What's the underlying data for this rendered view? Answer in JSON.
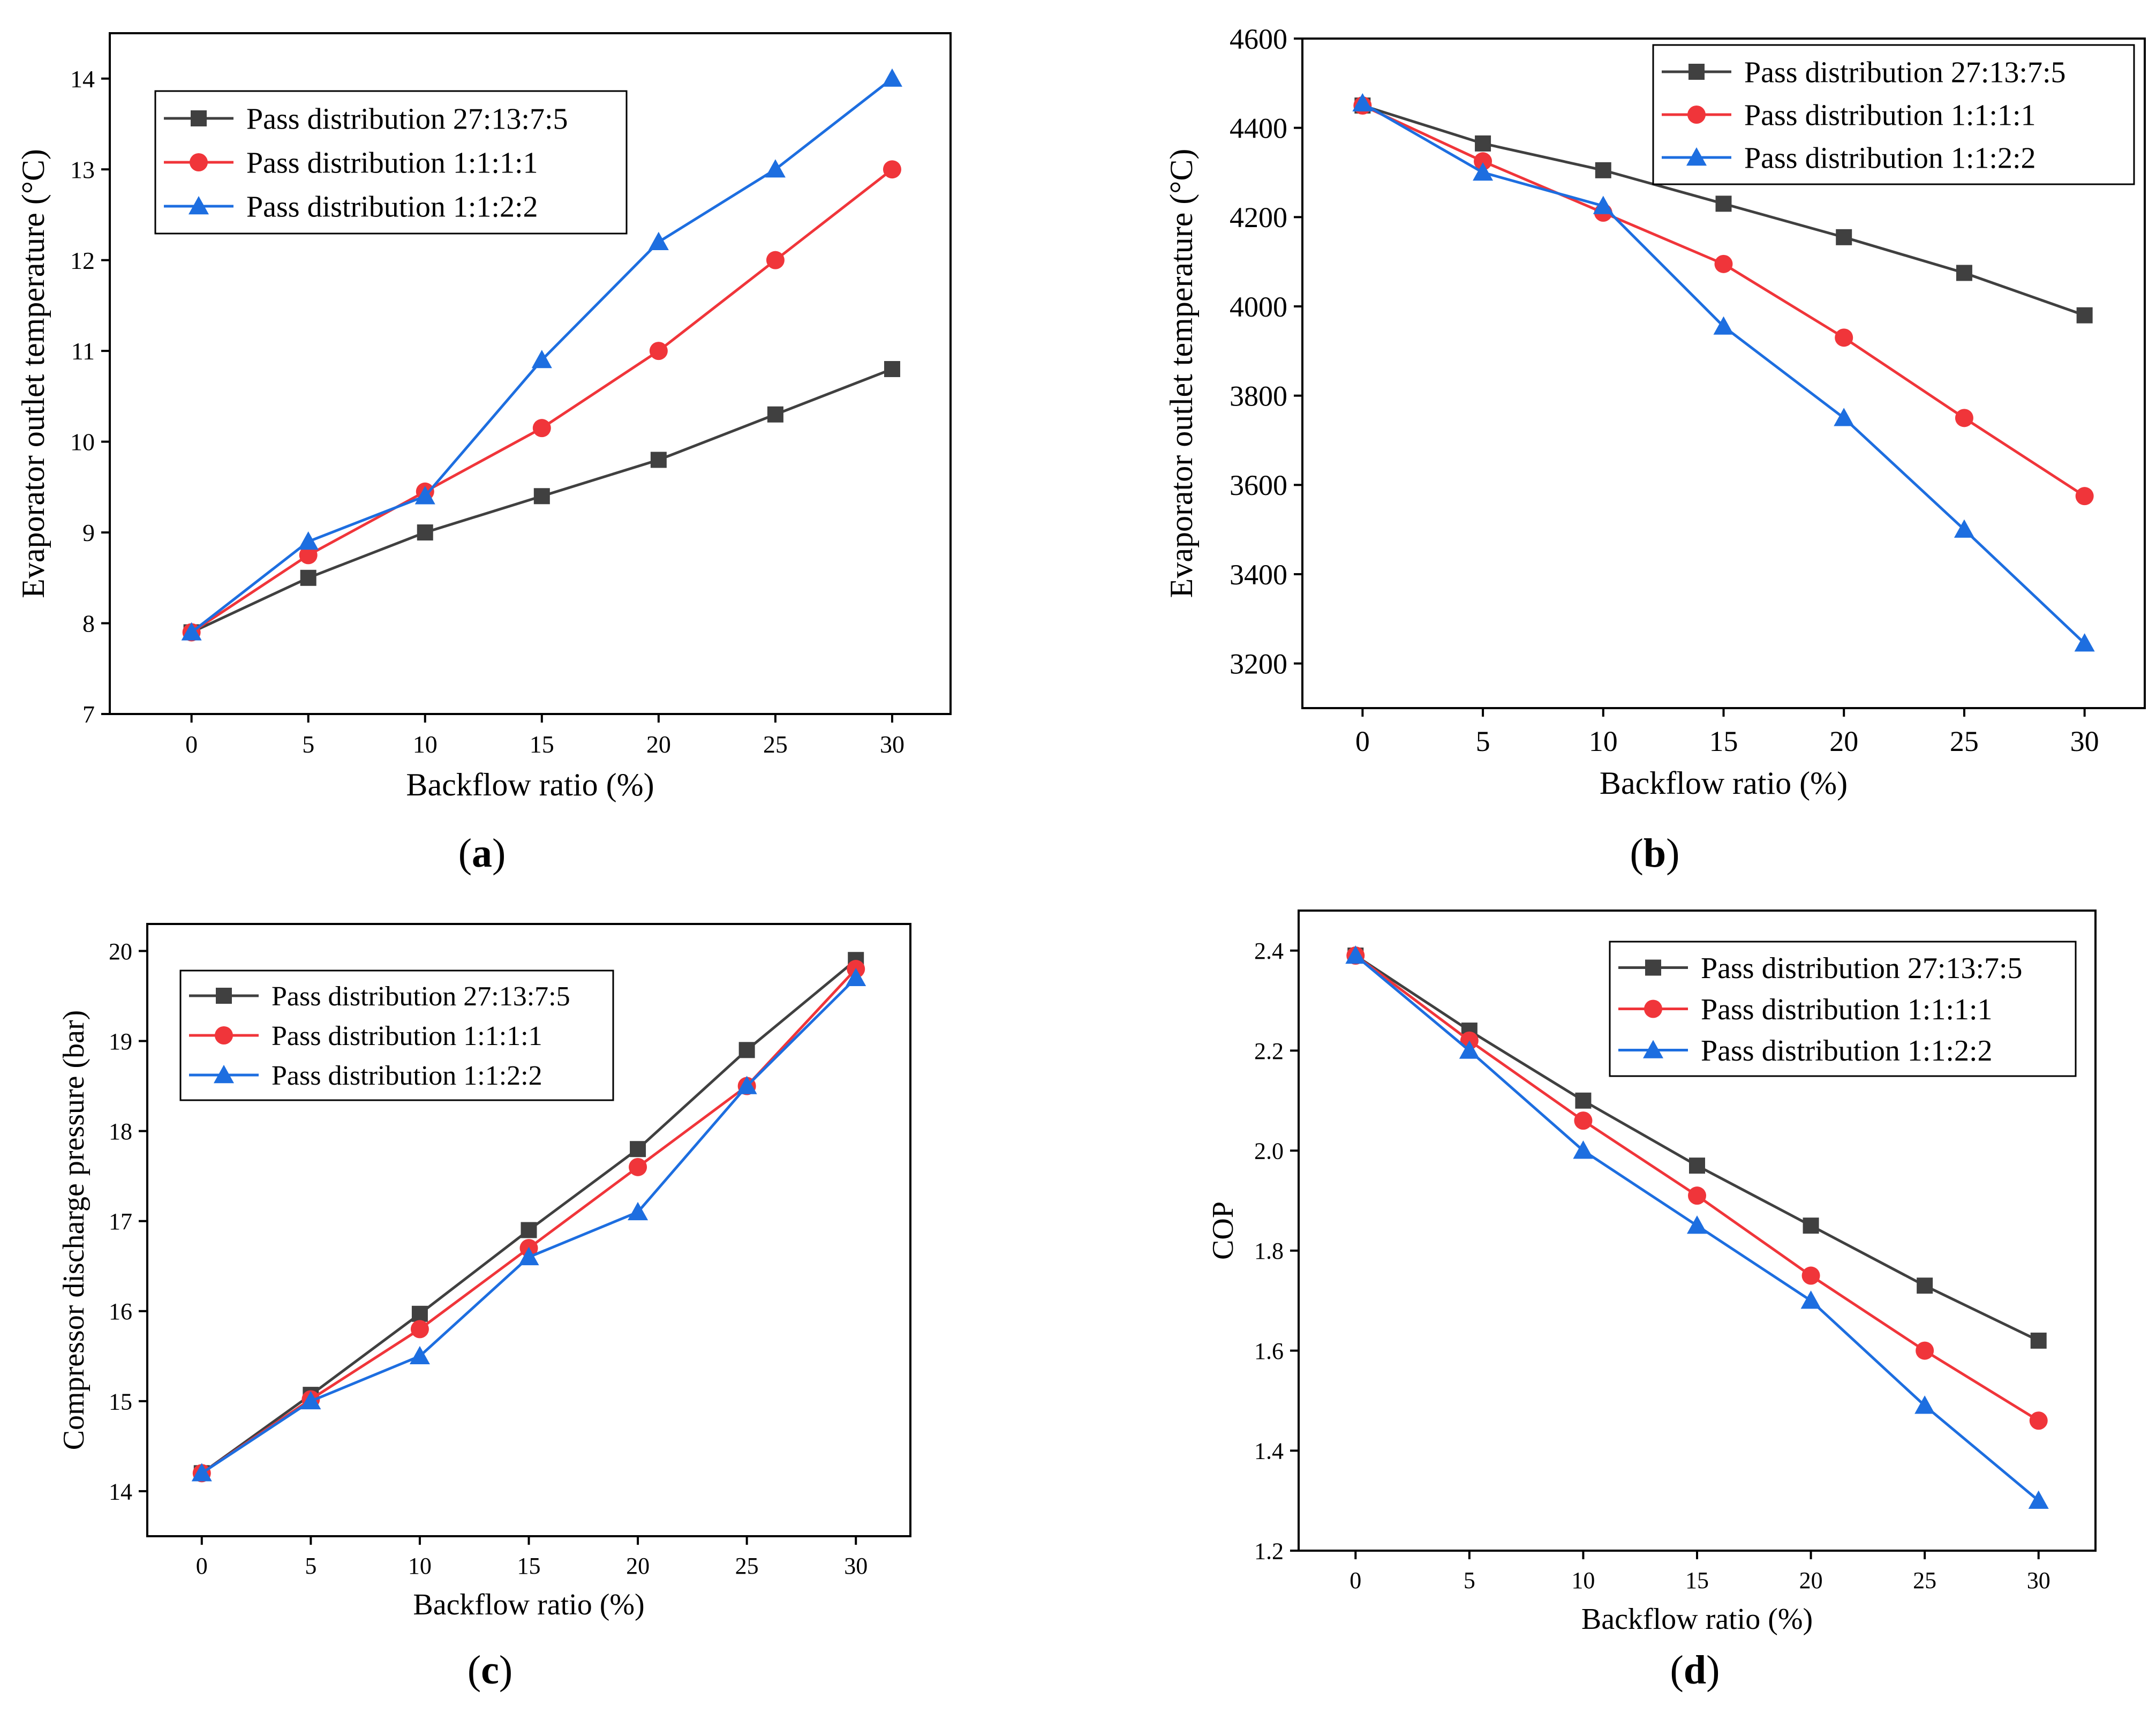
{
  "colors": {
    "series": [
      "#404040",
      "#f0353a",
      "#1d6ee0"
    ],
    "axis": "#000000",
    "background": "#ffffff"
  },
  "markers": [
    "square",
    "circle",
    "triangle"
  ],
  "chart_data": [
    {
      "type": "line",
      "caption": "a",
      "xlabel": "Backflow ratio (%)",
      "ylabel": "Evaporator outlet temperature (°C)",
      "title": "",
      "x": [
        0,
        5,
        10,
        15,
        20,
        25,
        30
      ],
      "xlim": [
        -3.5,
        32.5
      ],
      "ylim": [
        7,
        14.5
      ],
      "yticks": [
        7,
        8,
        9,
        10,
        11,
        12,
        13,
        14
      ],
      "grid": false,
      "legend_position": "top-left",
      "series": [
        {
          "name": "Pass distribution 27:13:7:5",
          "values": [
            7.9,
            8.5,
            9.0,
            9.4,
            9.8,
            10.3,
            10.8
          ]
        },
        {
          "name": "Pass distribution 1:1:1:1",
          "values": [
            7.9,
            8.75,
            9.45,
            10.15,
            11.0,
            12.0,
            13.0
          ]
        },
        {
          "name": "Pass distribution 1:1:2:2",
          "values": [
            7.9,
            8.9,
            9.4,
            10.9,
            12.2,
            13.0,
            14.0
          ]
        }
      ]
    },
    {
      "type": "line",
      "caption": "b",
      "xlabel": "Backflow ratio (%)",
      "ylabel": "Evaporator outlet temperature (°C)",
      "title": "",
      "x": [
        0,
        5,
        10,
        15,
        20,
        25,
        30
      ],
      "xlim": [
        -2.5,
        32.5
      ],
      "ylim": [
        3100,
        4600
      ],
      "yticks": [
        3200,
        3400,
        3600,
        3800,
        4000,
        4200,
        4400,
        4600
      ],
      "grid": false,
      "legend_position": "top-right",
      "series": [
        {
          "name": "Pass distribution 27:13:7:5",
          "values": [
            4450,
            4365,
            4305,
            4230,
            4155,
            4075,
            3980
          ]
        },
        {
          "name": "Pass distribution 1:1:1:1",
          "values": [
            4450,
            4325,
            4210,
            4095,
            3930,
            3750,
            3575
          ]
        },
        {
          "name": "Pass distribution 1:1:2:2",
          "values": [
            4455,
            4300,
            4225,
            3955,
            3750,
            3500,
            3245
          ]
        }
      ]
    },
    {
      "type": "line",
      "caption": "c",
      "xlabel": "Backflow ratio (%)",
      "ylabel": "Compressor discharge pressure (bar)",
      "title": "",
      "x": [
        0,
        5,
        10,
        15,
        20,
        25,
        30
      ],
      "xlim": [
        -2.5,
        32.5
      ],
      "ylim": [
        13.5,
        20.3
      ],
      "yticks": [
        14,
        15,
        16,
        17,
        18,
        19,
        20
      ],
      "grid": false,
      "legend_position": "top-left",
      "series": [
        {
          "name": "Pass distribution 27:13:7:5",
          "values": [
            14.2,
            15.07,
            15.97,
            16.9,
            17.8,
            18.9,
            19.9
          ]
        },
        {
          "name": "Pass distribution 1:1:1:1",
          "values": [
            14.2,
            15.02,
            15.8,
            16.7,
            17.6,
            18.5,
            19.8
          ]
        },
        {
          "name": "Pass distribution 1:1:2:2",
          "values": [
            14.2,
            15.0,
            15.5,
            16.6,
            17.1,
            18.5,
            19.7
          ]
        }
      ]
    },
    {
      "type": "line",
      "caption": "d",
      "xlabel": "Backflow ratio (%)",
      "ylabel": "COP",
      "title": "",
      "x": [
        0,
        5,
        10,
        15,
        20,
        25,
        30
      ],
      "xlim": [
        -2.5,
        32.5
      ],
      "ylim": [
        1.2,
        2.48
      ],
      "yticks": [
        1.2,
        1.4,
        1.6,
        1.8,
        2.0,
        2.2,
        2.4
      ],
      "ytick_labels": [
        "1.2",
        "1.4",
        "1.6",
        "1.8",
        "2.0",
        "2.2",
        "2.4"
      ],
      "grid": false,
      "legend_position": "top-right",
      "series": [
        {
          "name": "Pass distribution 27:13:7:5",
          "values": [
            2.39,
            2.24,
            2.1,
            1.97,
            1.85,
            1.73,
            1.62
          ]
        },
        {
          "name": "Pass distribution 1:1:1:1",
          "values": [
            2.39,
            2.22,
            2.06,
            1.91,
            1.75,
            1.6,
            1.46
          ]
        },
        {
          "name": "Pass distribution 1:1:2:2",
          "values": [
            2.39,
            2.2,
            2.0,
            1.85,
            1.7,
            1.49,
            1.3
          ]
        }
      ]
    }
  ]
}
